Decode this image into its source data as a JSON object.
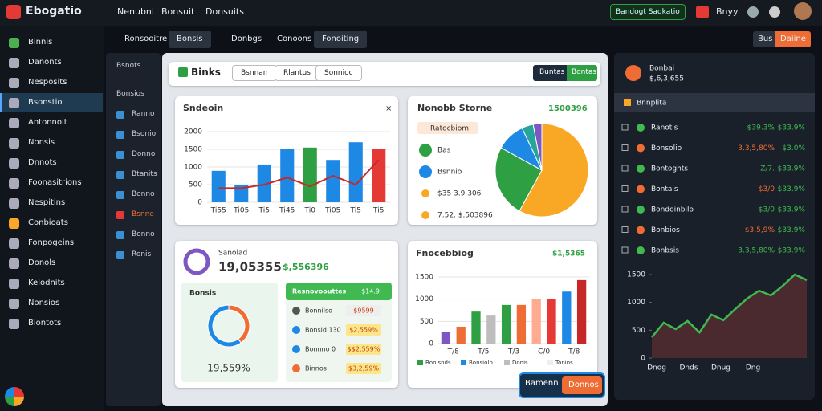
{
  "topbar": {
    "logo": "Ebogatio",
    "nav": [
      "Nenubni",
      "Bonsuit",
      "Donsuits"
    ],
    "action": "Bandogt Sadkatio",
    "user": "Bnyy"
  },
  "sidebar": [
    "Binnis",
    "Danonts",
    "Nesposits",
    "Bsonstio",
    "Antonnoit",
    "Nonsis",
    "Dnnots",
    "Foonasitrions",
    "Nespitins",
    "Conbioats",
    "Fonpogeins",
    "Donols",
    "Kelodnits",
    "Nonsios",
    "Biontots"
  ],
  "tabs": [
    "Ronsooitre",
    "Bonsis",
    "Donbgs",
    "Conoons",
    "Fonoiting"
  ],
  "tab_actions": [
    "Bus",
    "Daiine"
  ],
  "subnav": [
    "Bsnots",
    "Bonsios",
    "Ranno",
    "Bsonio",
    "Donno",
    "Btanits",
    "Bonno",
    "Bsnne",
    "Bonno",
    "Ronis"
  ],
  "panel": {
    "title": "Binks",
    "buttons": [
      "Bsnnan",
      "Rlantus",
      "Sonnioc"
    ],
    "actions": [
      "Buntas",
      "Bontas"
    ]
  },
  "bar_card": {
    "title": "Sndeoin",
    "chart": {
      "type": "bar",
      "categories": [
        "Ti55",
        "Ti05",
        "Ti5",
        "Ti45",
        "Ti0",
        "Ti05",
        "Ti5",
        "Ti5"
      ],
      "values": [
        890,
        500,
        1070,
        1520,
        1550,
        1200,
        1700,
        1500
      ],
      "colors": [
        "#1e88e5",
        "#1e88e5",
        "#1e88e5",
        "#1e88e5",
        "#2ea043",
        "#1e88e5",
        "#1e88e5",
        "#e53935"
      ],
      "line_values": [
        400,
        400,
        500,
        700,
        450,
        750,
        500,
        1200
      ],
      "line_color": "#c62828",
      "ylim": [
        0,
        2000
      ],
      "yticks": [
        0,
        500,
        1000,
        1500,
        2000
      ],
      "grid": true
    }
  },
  "pie_card": {
    "title": "Nonobb Storne",
    "total": "1500396",
    "chip": "Ratocbiom",
    "legend": [
      "Bas",
      "Bsnnio",
      "$35 3.9 306",
      "7.52. $.503896"
    ],
    "chart": {
      "type": "pie",
      "values": [
        58,
        25,
        10,
        4,
        3
      ],
      "colors": [
        "#f9a825",
        "#2ea043",
        "#1e88e5",
        "#26a69a",
        "#7e57c2"
      ]
    }
  },
  "summary_card": {
    "title": "Sanolad",
    "value": "19,05355",
    "delta": "$,556396",
    "sub_title": "Bonsis",
    "sub_caption": "19,559%",
    "donut": {
      "type": "pie",
      "values": [
        40,
        60
      ],
      "colors": [
        "#ef6c35",
        "#1e88e5"
      ]
    },
    "list_title": "Resnovoouttes",
    "list_badge": "$14.9",
    "rows": [
      [
        "Bonnilso",
        "$9599"
      ],
      [
        "Bonsid 130",
        "$2,559%"
      ],
      [
        "Bonnno 0",
        "$$2,559%"
      ],
      [
        "Binnos",
        "$3,2,59%"
      ]
    ]
  },
  "forecast_card": {
    "title": "Fnocebbiog",
    "value": "$1,5365",
    "legend": [
      "Bonisnds",
      "Bonsiolb",
      "Donis",
      "Tonins"
    ],
    "legend_colors": [
      "#2ea043",
      "#1e88e5",
      "#bdbdbd",
      "#eeeeee"
    ],
    "chart": {
      "type": "bar",
      "categories": [
        "T/8",
        null,
        "T/5",
        null,
        "T/3",
        null,
        "C/0",
        null,
        "T/8",
        null
      ],
      "values": [
        270,
        380,
        720,
        630,
        870,
        870,
        1000,
        1000,
        1170,
        1430
      ],
      "colors": [
        "#7e57c2",
        "#ef6c35",
        "#2ea043",
        "#bdbdbd",
        "#2ea043",
        "#ef6c35",
        "#ffab91",
        "#e53935",
        "#1e88e5",
        "#c62828"
      ],
      "ylim": [
        0,
        1500
      ],
      "yticks": [
        0,
        500,
        1000,
        1500
      ],
      "grid": true
    }
  },
  "right_panel": {
    "title": "Bonbai",
    "subtitle": "$,6,3,655",
    "section": "Bnnplita",
    "rows": [
      [
        "Ranotis",
        "$39.3%",
        "$33.9%"
      ],
      [
        "Bonsolio",
        "3.3,5,80%",
        "$3.0%"
      ],
      [
        "Bontoghts",
        "Z/7.",
        "$33.9%"
      ],
      [
        "Bontais",
        "$3/0",
        "$33.9%"
      ],
      [
        "Bondoinbilo",
        "$3/0",
        "$33.9%"
      ],
      [
        "Bonbios",
        "$3,5,9%",
        "$33.9%"
      ],
      [
        "Bonbsis",
        "3.3,5,80%",
        "$33.9%"
      ]
    ],
    "chart": {
      "type": "line",
      "categories": [
        "Dnog",
        "Dnds",
        "Dnug",
        "Dng"
      ],
      "values": [
        375,
        635,
        520,
        665,
        460,
        780,
        680,
        880,
        1070,
        1210,
        1125,
        1300,
        1500,
        1400
      ],
      "color": "#3fb950",
      "ylim": [
        0,
        1500
      ],
      "yticks": [
        0,
        500,
        1000,
        1500
      ]
    }
  },
  "footer_actions": [
    "Bamenn",
    "Donnos"
  ]
}
